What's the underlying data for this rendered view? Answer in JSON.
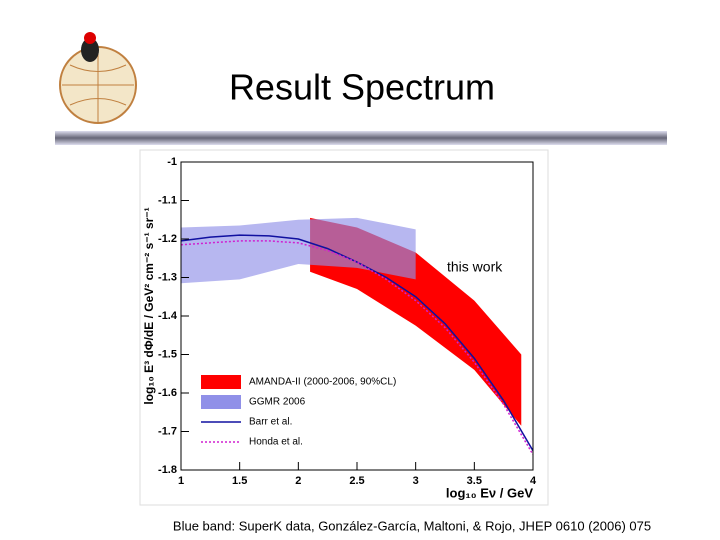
{
  "slide": {
    "title": "Result Spectrum",
    "caption": "Blue band: SuperK data, González-García, Maltoni, & Rojo, JHEP 0610 (2006) 075"
  },
  "chart_data": {
    "type": "line",
    "xlabel": "log₁₀ Eν / GeV",
    "ylabel": "log₁₀ E³ dΦ/dE / GeV² cm⁻² s⁻¹ sr⁻¹",
    "annotation": "this work",
    "xlim": [
      1,
      4
    ],
    "xticks": [
      1,
      1.5,
      2,
      2.5,
      3,
      3.5,
      4
    ],
    "ylim": [
      -1.8,
      -1
    ],
    "yticks": [
      -1.8,
      -1.7,
      -1.6,
      -1.5,
      -1.4,
      -1.3,
      -1.2,
      -1.1,
      -1
    ],
    "legend": "lower left",
    "series": [
      {
        "name": "AMANDA-II (2000-2006, 90%CL)",
        "color": "#ff0000",
        "x": [
          2.1,
          2.5,
          3,
          3.5,
          3.9
        ],
        "upper": [
          -1.145,
          -1.17,
          -1.235,
          -1.36,
          -1.5
        ],
        "lower": [
          -1.285,
          -1.33,
          -1.425,
          -1.54,
          -1.685
        ]
      },
      {
        "name": "GGMR 2006",
        "color": "#9090e8",
        "x": [
          1,
          1.5,
          2,
          2.5,
          3
        ],
        "upper": [
          -1.17,
          -1.165,
          -1.15,
          -1.145,
          -1.175
        ],
        "lower": [
          -1.315,
          -1.305,
          -1.265,
          -1.275,
          -1.305
        ]
      },
      {
        "name": "Barr et al.",
        "color": "#1010a0",
        "style": "solid",
        "x": [
          1,
          1.25,
          1.5,
          1.75,
          2,
          2.25,
          2.5,
          2.75,
          3,
          3.25,
          3.5,
          3.75,
          4
        ],
        "values": [
          -1.205,
          -1.195,
          -1.19,
          -1.192,
          -1.2,
          -1.225,
          -1.26,
          -1.3,
          -1.35,
          -1.42,
          -1.51,
          -1.62,
          -1.75
        ]
      },
      {
        "name": "Honda et al.",
        "color": "#d020d0",
        "style": "dotted",
        "x": [
          1,
          1.25,
          1.5,
          1.75,
          2,
          2.25,
          2.5,
          2.75,
          3,
          3.25,
          3.5,
          3.75,
          4
        ],
        "values": [
          -1.215,
          -1.21,
          -1.205,
          -1.205,
          -1.21,
          -1.23,
          -1.26,
          -1.305,
          -1.36,
          -1.43,
          -1.52,
          -1.63,
          -1.76
        ]
      }
    ]
  }
}
